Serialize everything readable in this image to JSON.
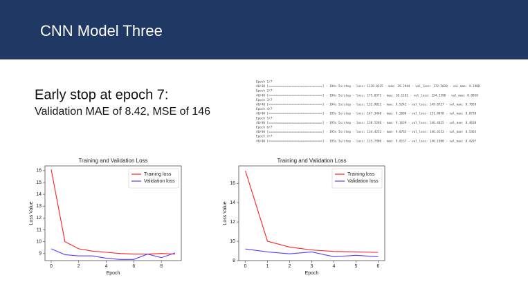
{
  "slide": {
    "title": "CNN Model Three",
    "heading": "Early stop at epoch 7:",
    "subheading": "Validation MAE of 8.42, MSE of 146",
    "log": [
      "Epoch 1/7",
      "40/40 [==============================] - 194s 5s/step - loss: 1139.8225 - mae: 25.2944 - val_loss: 172.5020 - val_mae: 9.1900",
      "Epoch 2/7",
      "40/40 [==============================] - 194s 5s/step - loss: 175.0371 - mae: 10.1181 - val_loss: 154.2590 - val_mae: 8.8958",
      "Epoch 3/7",
      "40/40 [==============================] - 194s 5s/step - loss: 152.9021 - mae: 9.5242 - val_loss: 149.8727 - val_mae: 8.7059",
      "Epoch 4/7",
      "40/40 [==============================] - 195s 5s/step - loss: 147.3440 - mae: 9.2800 - val_loss: 151.8078 - val_mae: 8.8730",
      "Epoch 5/7",
      "40/40 [==============================] - 195s 5s/step - loss: 138.5246 - mae: 9.1639 - val_loss: 146.4015 - val_mae: 8.4638",
      "Epoch 6/7",
      "40/40 [==============================] - 195s 5s/step - loss: 134.4252 - mae: 9.0763 - val_loss: 146.4253 - val_mae: 8.5363",
      "Epoch 7/7",
      "40/40 [==============================] - 195s 5s/step - loss: 135.7900 - mae: 9.0157 - val_loss: 146.1080 - val_mae: 8.4207"
    ]
  },
  "chart_data": [
    {
      "type": "line",
      "title": "Training and Validation Loss",
      "x_label": "Epoch",
      "y_label": "Loss Value",
      "x": [
        0,
        1,
        2,
        3,
        4,
        5,
        6,
        7,
        8,
        9
      ],
      "series": [
        {
          "name": "Training loss",
          "color": "#ff2020",
          "values": [
            16.1,
            10.0,
            9.4,
            9.2,
            9.1,
            9.0,
            8.95,
            8.95,
            9.0,
            8.95
          ]
        },
        {
          "name": "Validation loss",
          "color": "#5a3cff",
          "values": [
            9.4,
            8.9,
            8.8,
            8.8,
            8.6,
            8.5,
            8.5,
            8.95,
            8.65,
            9.05
          ]
        }
      ],
      "xlim": [
        -0.45,
        9.45
      ],
      "xticks": [
        0,
        2,
        4,
        6,
        8
      ],
      "ylim": [
        8.4,
        16.4
      ],
      "yticks": [
        9,
        10,
        11,
        12,
        13,
        14,
        15,
        16
      ],
      "legend": "upper right"
    },
    {
      "type": "line",
      "title": "Training and Validation Loss",
      "x_label": "Epoch",
      "y_label": "Loss Value",
      "x": [
        0,
        1,
        2,
        3,
        4,
        5,
        6
      ],
      "series": [
        {
          "name": "Training loss",
          "color": "#ff2020",
          "values": [
            17.3,
            10.0,
            9.4,
            9.1,
            8.95,
            8.9,
            8.85
          ]
        },
        {
          "name": "Validation loss",
          "color": "#5a3cff",
          "values": [
            9.2,
            8.9,
            8.7,
            8.9,
            8.4,
            8.55,
            8.4
          ]
        }
      ],
      "xlim": [
        -0.3,
        6.3
      ],
      "xticks": [
        0,
        1,
        2,
        3,
        4,
        5,
        6
      ],
      "ylim": [
        8,
        17.8
      ],
      "yticks": [
        8,
        10,
        12,
        14,
        16
      ],
      "legend": "upper right"
    }
  ]
}
